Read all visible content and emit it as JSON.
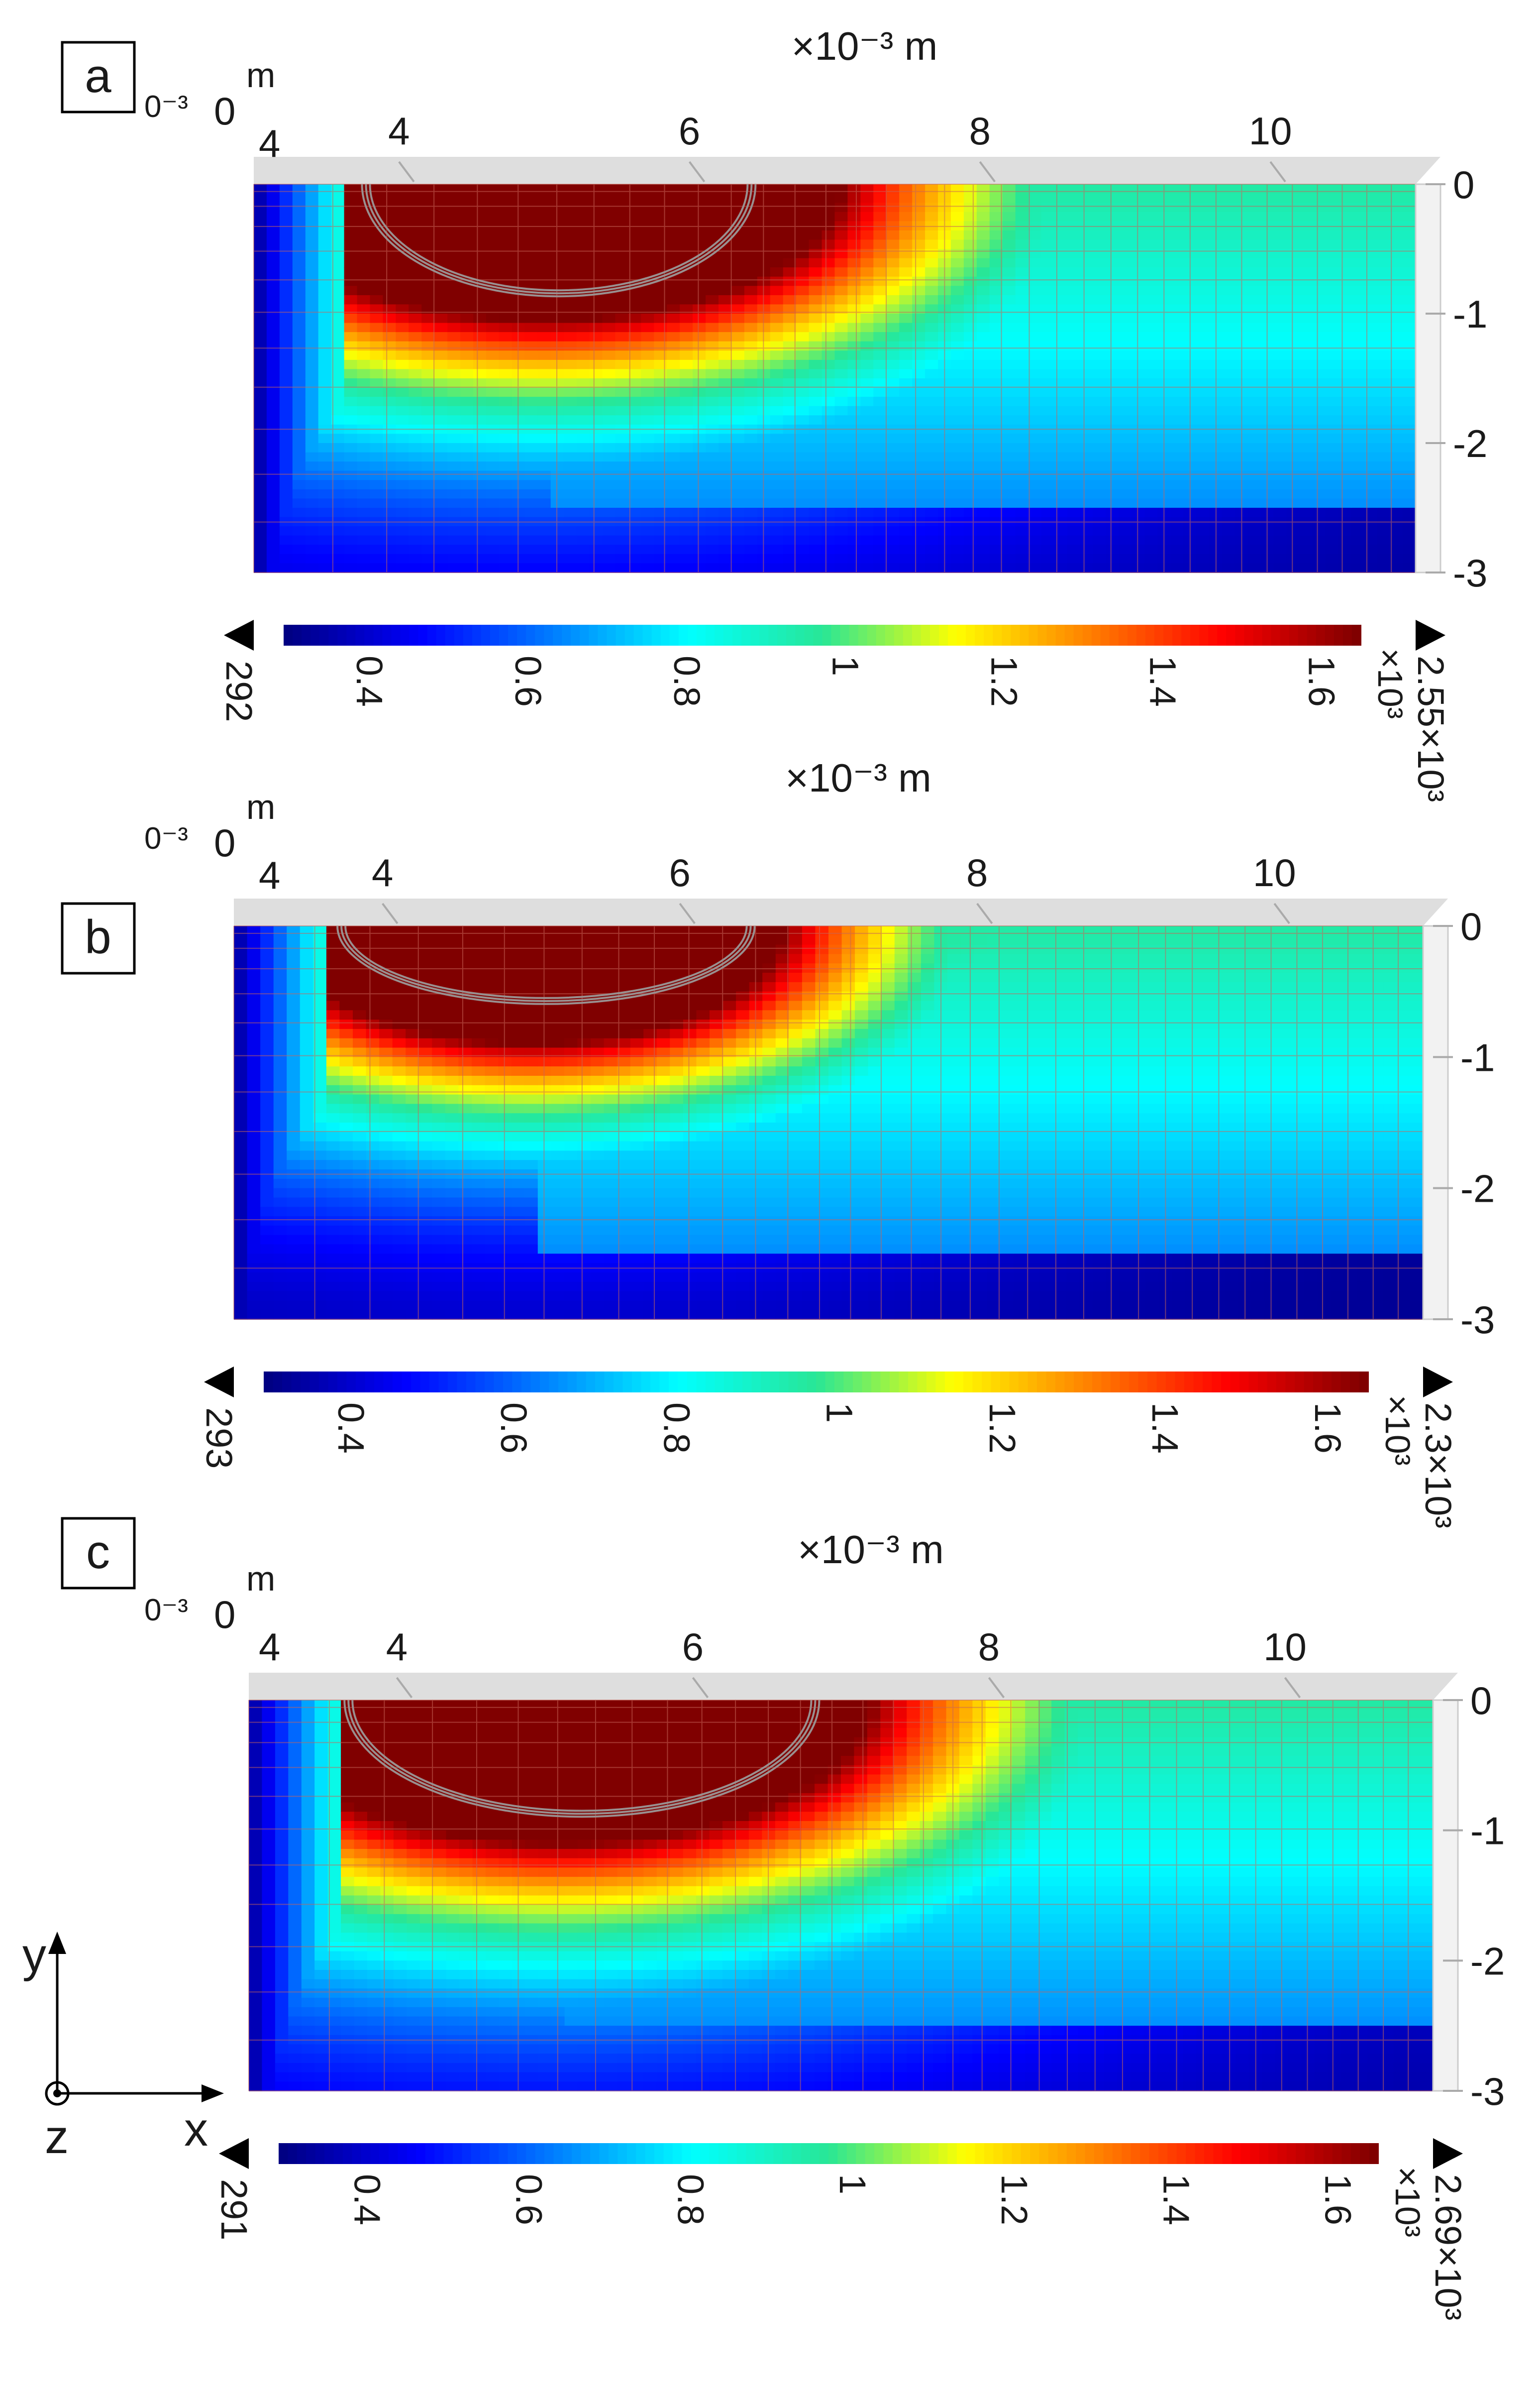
{
  "chart_data": [
    {
      "type": "heatmap",
      "panel_label": "a",
      "x_unit_label": "×10⁻³ m",
      "x_ticks": [
        "4",
        "6",
        "8",
        "10"
      ],
      "x_tick_values": [
        4,
        6,
        8,
        10
      ],
      "x_range": [
        3,
        11
      ],
      "corner_labels": {
        "exp": "0⁻³",
        "zero": "0",
        "unit": "m",
        "start": "4"
      },
      "y_ticks": [
        "0",
        "-1",
        "-2",
        "-3"
      ],
      "y_tick_values": [
        0,
        -1,
        -2,
        -3
      ],
      "y_range": [
        -3,
        0
      ],
      "melt_pool": {
        "x_center": 5.0,
        "x_half_width": 2.05,
        "depth": 1.05,
        "contour_x_center": 5.1,
        "contour_half_width": 1.3,
        "contour_depth": 0.82
      },
      "colorbar": {
        "min_label": "292",
        "max_label": "2.55×10³",
        "scale_label": "×10³",
        "ticks": [
          "0.4",
          "0.6",
          "0.8",
          "1",
          "1.2",
          "1.4",
          "1.6"
        ],
        "tick_values": [
          0.4,
          0.6,
          0.8,
          1.0,
          1.2,
          1.4,
          1.6
        ],
        "range": [
          0.292,
          1.65
        ]
      }
    },
    {
      "type": "heatmap",
      "panel_label": "b",
      "x_unit_label": "×10⁻³ m",
      "x_ticks": [
        "4",
        "6",
        "8",
        "10"
      ],
      "x_tick_values": [
        4,
        6,
        8,
        10
      ],
      "x_range": [
        3,
        11
      ],
      "corner_labels": {
        "exp": "0⁻³",
        "zero": "0",
        "unit": "m",
        "start": "4"
      },
      "y_ticks": [
        "0",
        "-1",
        "-2",
        "-3"
      ],
      "y_tick_values": [
        0,
        -1,
        -2,
        -3
      ],
      "y_range": [
        -3,
        0
      ],
      "melt_pool": {
        "x_center": 5.0,
        "x_half_width": 1.7,
        "depth": 0.9,
        "contour_x_center": 5.1,
        "contour_half_width": 1.35,
        "contour_depth": 0.55
      },
      "colorbar": {
        "min_label": "293",
        "max_label": "2.3×10³",
        "scale_label": "×10³",
        "ticks": [
          "0.4",
          "0.6",
          "0.8",
          "1",
          "1.2",
          "1.4",
          "1.6"
        ],
        "tick_values": [
          0.4,
          0.6,
          0.8,
          1.0,
          1.2,
          1.4,
          1.6
        ],
        "range": [
          0.293,
          1.65
        ]
      }
    },
    {
      "type": "heatmap",
      "panel_label": "c",
      "x_unit_label": "×10⁻³ m",
      "x_ticks": [
        "4",
        "6",
        "8",
        "10"
      ],
      "x_tick_values": [
        4,
        6,
        8,
        10
      ],
      "x_range": [
        3,
        11
      ],
      "corner_labels": {
        "exp": "0⁻³",
        "zero": "0",
        "unit": "m",
        "start": "4"
      },
      "y_ticks": [
        "0",
        "-1",
        "-2",
        "-3"
      ],
      "y_tick_values": [
        0,
        -1,
        -2,
        -3
      ],
      "y_range": [
        -3,
        0
      ],
      "melt_pool": {
        "x_center": 5.1,
        "x_half_width": 2.1,
        "depth": 1.1,
        "contour_x_center": 5.25,
        "contour_half_width": 1.55,
        "contour_depth": 0.85
      },
      "colorbar": {
        "min_label": "291",
        "max_label": "2.69×10³",
        "scale_label": "×10³",
        "ticks": [
          "0.4",
          "0.6",
          "0.8",
          "1",
          "1.2",
          "1.4",
          "1.6"
        ],
        "tick_values": [
          0.4,
          0.6,
          0.8,
          1.0,
          1.2,
          1.4,
          1.6
        ],
        "range": [
          0.291,
          1.65
        ]
      }
    }
  ],
  "axes_triad": {
    "y_label": "y",
    "x_label": "x",
    "z_label": "z"
  },
  "colors": {
    "mesh_line": "#c8665a",
    "frame": "#cccccc",
    "text": "#1a1a1a"
  }
}
